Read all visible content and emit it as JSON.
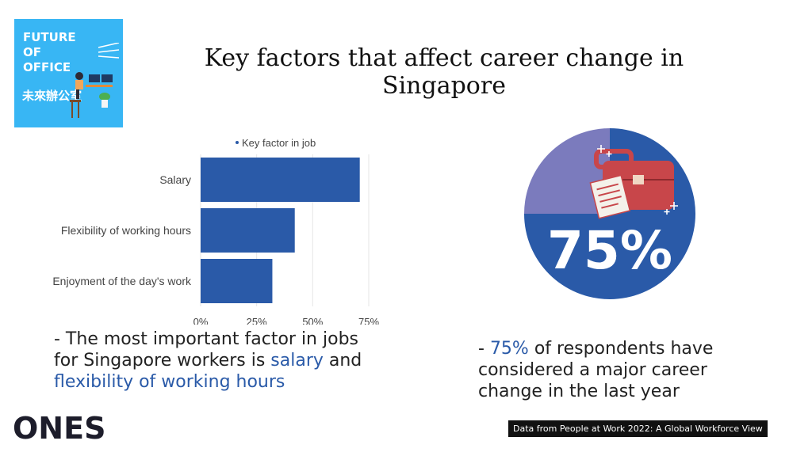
{
  "title": "Key factors that affect career change in Singapore",
  "logo": {
    "line1": "FUTURE",
    "line2": "OF",
    "line3": "OFFICE",
    "chinese": "未來辦公室",
    "icon": "office-worker-illustration"
  },
  "chart_data": [
    {
      "type": "bar",
      "orientation": "horizontal",
      "legend": "Key factor in job",
      "categories": [
        "Salary",
        "Flexibility of working hours",
        "Enjoyment of the day's work"
      ],
      "values": [
        71,
        42,
        32
      ],
      "xticks": [
        "0%",
        "25%",
        "50%",
        "75%"
      ],
      "xlim": [
        0,
        75
      ],
      "grid": true,
      "color": "#2a5aa8"
    },
    {
      "type": "pie",
      "slices": [
        75,
        25
      ],
      "label": "75%",
      "colors": [
        "#2a5aa8",
        "#7b7bbd"
      ],
      "icon": "briefcase-icon"
    }
  ],
  "notes": {
    "left": {
      "pre": "- The most important factor in jobs for Singapore workers is ",
      "h1": "salary",
      "mid": " and ",
      "h2": "flexibility of working hours"
    },
    "right": {
      "pre": "- ",
      "h1": "75%",
      "post": " of respondents have considered a major career change in the last year"
    }
  },
  "source": "Data from People at Work 2022: A Global Workforce View",
  "brand": "ONES"
}
